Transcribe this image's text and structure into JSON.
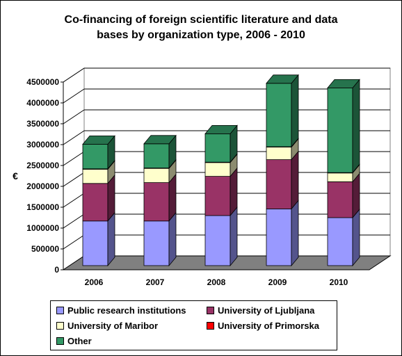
{
  "chart_data": {
    "type": "bar",
    "stacked": true,
    "three_d": true,
    "title": "Co-financing of foreign scientific literature and data bases by organization type, 2006 - 2010",
    "title_lines": [
      "Co-financing of foreign scientific literature and data",
      "bases by organization type, 2006 - 2010"
    ],
    "ylabel": "€",
    "xlabel": "",
    "ylim": [
      0,
      4500000
    ],
    "yticks": [
      0,
      500000,
      1000000,
      1500000,
      2000000,
      2500000,
      3000000,
      3500000,
      4000000,
      4500000
    ],
    "grid": true,
    "legend_position": "bottom",
    "categories": [
      "2006",
      "2007",
      "2008",
      "2009",
      "2010"
    ],
    "series": [
      {
        "name": "Public research institutions",
        "color": "#9999ff",
        "values": [
          1070000,
          1070000,
          1200000,
          1360000,
          1150000
        ]
      },
      {
        "name": "University of Ljubljana",
        "color": "#993366",
        "values": [
          900000,
          920000,
          940000,
          1180000,
          860000
        ]
      },
      {
        "name": "University of Maribor",
        "color": "#ffffcc",
        "values": [
          340000,
          340000,
          330000,
          300000,
          210000
        ]
      },
      {
        "name": "University of Primorska",
        "color": "#ff0000",
        "values": [
          10000,
          10000,
          10000,
          10000,
          10000
        ]
      },
      {
        "name": "Other",
        "color": "#339966",
        "values": [
          590000,
          580000,
          680000,
          1520000,
          2030000
        ]
      }
    ]
  }
}
